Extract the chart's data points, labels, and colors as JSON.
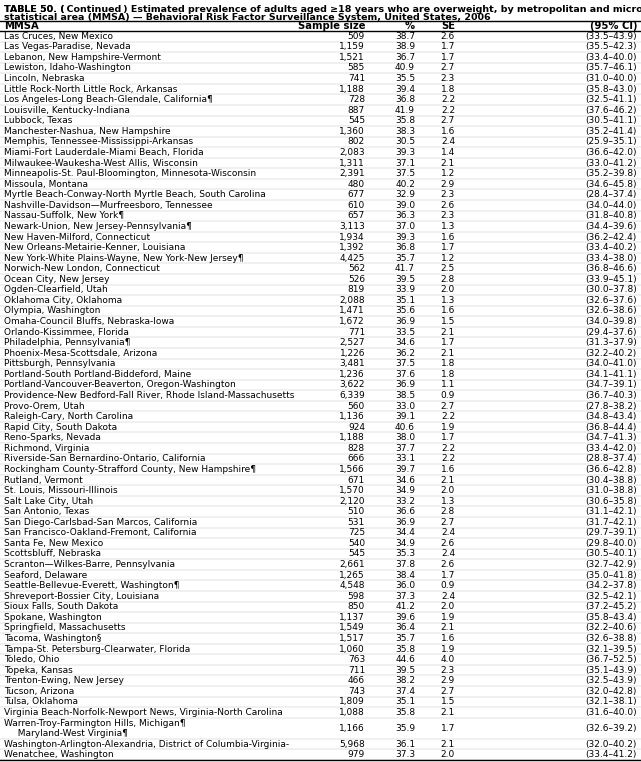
{
  "title_line1": "TABLE 50. (Continued) Estimated prevalence of adults aged ≥18 years who are overweight, by metropolitan and micropolitan",
  "title_line2": "statistical area (MMSA) — Behavioral Risk Factor Surveillance System, United States, 2006",
  "col_headers": [
    "MMSA",
    "Sample size",
    "%",
    "SE",
    "(95% CI)"
  ],
  "rows": [
    [
      "Las Cruces, New Mexico",
      "509",
      "38.7",
      "2.6",
      "(33.5–43.9)"
    ],
    [
      "Las Vegas-Paradise, Nevada",
      "1,159",
      "38.9",
      "1.7",
      "(35.5–42.3)"
    ],
    [
      "Lebanon, New Hampshire-Vermont",
      "1,521",
      "36.7",
      "1.7",
      "(33.4–40.0)"
    ],
    [
      "Lewiston, Idaho-Washington",
      "585",
      "40.9",
      "2.7",
      "(35.7–46.1)"
    ],
    [
      "Lincoln, Nebraska",
      "741",
      "35.5",
      "2.3",
      "(31.0–40.0)"
    ],
    [
      "Little Rock-North Little Rock, Arkansas",
      "1,188",
      "39.4",
      "1.8",
      "(35.8–43.0)"
    ],
    [
      "Los Angeles-Long Beach-Glendale, California¶",
      "728",
      "36.8",
      "2.2",
      "(32.5–41.1)"
    ],
    [
      "Louisville, Kentucky-Indiana",
      "887",
      "41.9",
      "2.2",
      "(37.6–46.2)"
    ],
    [
      "Lubbock, Texas",
      "545",
      "35.8",
      "2.7",
      "(30.5–41.1)"
    ],
    [
      "Manchester-Nashua, New Hampshire",
      "1,360",
      "38.3",
      "1.6",
      "(35.2–41.4)"
    ],
    [
      "Memphis, Tennessee-Mississippi-Arkansas",
      "802",
      "30.5",
      "2.4",
      "(25.9–35.1)"
    ],
    [
      "Miami-Fort Lauderdale-Miami Beach, Florida",
      "2,083",
      "39.3",
      "1.4",
      "(36.6–42.0)"
    ],
    [
      "Milwaukee-Waukesha-West Allis, Wisconsin",
      "1,311",
      "37.1",
      "2.1",
      "(33.0–41.2)"
    ],
    [
      "Minneapolis-St. Paul-Bloomington, Minnesota-Wisconsin",
      "2,391",
      "37.5",
      "1.2",
      "(35.2–39.8)"
    ],
    [
      "Missoula, Montana",
      "480",
      "40.2",
      "2.9",
      "(34.6–45.8)"
    ],
    [
      "Myrtle Beach-Conway-North Myrtle Beach, South Carolina",
      "677",
      "32.9",
      "2.3",
      "(28.4–37.4)"
    ],
    [
      "Nashville-Davidson—Murfreesboro, Tennessee",
      "610",
      "39.0",
      "2.6",
      "(34.0–44.0)"
    ],
    [
      "Nassau-Suffolk, New York¶",
      "657",
      "36.3",
      "2.3",
      "(31.8–40.8)"
    ],
    [
      "Newark-Union, New Jersey-Pennsylvania¶",
      "3,113",
      "37.0",
      "1.3",
      "(34.4–39.6)"
    ],
    [
      "New Haven-Milford, Connecticut",
      "1,934",
      "39.3",
      "1.6",
      "(36.2–42.4)"
    ],
    [
      "New Orleans-Metairie-Kenner, Louisiana",
      "1,392",
      "36.8",
      "1.7",
      "(33.4–40.2)"
    ],
    [
      "New York-White Plains-Wayne, New York-New Jersey¶",
      "4,425",
      "35.7",
      "1.2",
      "(33.4–38.0)"
    ],
    [
      "Norwich-New London, Connecticut",
      "562",
      "41.7",
      "2.5",
      "(36.8–46.6)"
    ],
    [
      "Ocean City, New Jersey",
      "526",
      "39.5",
      "2.8",
      "(33.9–45.1)"
    ],
    [
      "Ogden-Clearfield, Utah",
      "819",
      "33.9",
      "2.0",
      "(30.0–37.8)"
    ],
    [
      "Oklahoma City, Oklahoma",
      "2,088",
      "35.1",
      "1.3",
      "(32.6–37.6)"
    ],
    [
      "Olympia, Washington",
      "1,471",
      "35.6",
      "1.6",
      "(32.6–38.6)"
    ],
    [
      "Omaha-Council Bluffs, Nebraska-Iowa",
      "1,672",
      "36.9",
      "1.5",
      "(34.0–39.8)"
    ],
    [
      "Orlando-Kissimmee, Florida",
      "771",
      "33.5",
      "2.1",
      "(29.4–37.6)"
    ],
    [
      "Philadelphia, Pennsylvania¶",
      "2,527",
      "34.6",
      "1.7",
      "(31.3–37.9)"
    ],
    [
      "Phoenix-Mesa-Scottsdale, Arizona",
      "1,226",
      "36.2",
      "2.1",
      "(32.2–40.2)"
    ],
    [
      "Pittsburgh, Pennsylvania",
      "3,481",
      "37.5",
      "1.8",
      "(34.0–41.0)"
    ],
    [
      "Portland-South Portland-Biddeford, Maine",
      "1,236",
      "37.6",
      "1.8",
      "(34.1–41.1)"
    ],
    [
      "Portland-Vancouver-Beaverton, Oregon-Washington",
      "3,622",
      "36.9",
      "1.1",
      "(34.7–39.1)"
    ],
    [
      "Providence-New Bedford-Fall River, Rhode Island-Massachusetts",
      "6,339",
      "38.5",
      "0.9",
      "(36.7–40.3)"
    ],
    [
      "Provo-Orem, Utah",
      "560",
      "33.0",
      "2.7",
      "(27.8–38.2)"
    ],
    [
      "Raleigh-Cary, North Carolina",
      "1,136",
      "39.1",
      "2.2",
      "(34.8–43.4)"
    ],
    [
      "Rapid City, South Dakota",
      "924",
      "40.6",
      "1.9",
      "(36.8–44.4)"
    ],
    [
      "Reno-Sparks, Nevada",
      "1,188",
      "38.0",
      "1.7",
      "(34.7–41.3)"
    ],
    [
      "Richmond, Virginia",
      "828",
      "37.7",
      "2.2",
      "(33.4–42.0)"
    ],
    [
      "Riverside-San Bernardino-Ontario, California",
      "666",
      "33.1",
      "2.2",
      "(28.8–37.4)"
    ],
    [
      "Rockingham County-Strafford County, New Hampshire¶",
      "1,566",
      "39.7",
      "1.6",
      "(36.6–42.8)"
    ],
    [
      "Rutland, Vermont",
      "671",
      "34.6",
      "2.1",
      "(30.4–38.8)"
    ],
    [
      "St. Louis, Missouri-Illinois",
      "1,570",
      "34.9",
      "2.0",
      "(31.0–38.8)"
    ],
    [
      "Salt Lake City, Utah",
      "2,120",
      "33.2",
      "1.3",
      "(30.6–35.8)"
    ],
    [
      "San Antonio, Texas",
      "510",
      "36.6",
      "2.8",
      "(31.1–42.1)"
    ],
    [
      "San Diego-Carlsbad-San Marcos, California",
      "531",
      "36.9",
      "2.7",
      "(31.7–42.1)"
    ],
    [
      "San Francisco-Oakland-Fremont, California",
      "725",
      "34.4",
      "2.4",
      "(29.7–39.1)"
    ],
    [
      "Santa Fe, New Mexico",
      "540",
      "34.9",
      "2.6",
      "(29.8–40.0)"
    ],
    [
      "Scottsbluff, Nebraska",
      "545",
      "35.3",
      "2.4",
      "(30.5–40.1)"
    ],
    [
      "Scranton—Wilkes-Barre, Pennsylvania",
      "2,661",
      "37.8",
      "2.6",
      "(32.7–42.9)"
    ],
    [
      "Seaford, Delaware",
      "1,265",
      "38.4",
      "1.7",
      "(35.0–41.8)"
    ],
    [
      "Seattle-Bellevue-Everett, Washington¶",
      "4,548",
      "36.0",
      "0.9",
      "(34.2–37.8)"
    ],
    [
      "Shreveport-Bossier City, Louisiana",
      "598",
      "37.3",
      "2.4",
      "(32.5–42.1)"
    ],
    [
      "Sioux Falls, South Dakota",
      "850",
      "41.2",
      "2.0",
      "(37.2–45.2)"
    ],
    [
      "Spokane, Washington",
      "1,137",
      "39.6",
      "1.9",
      "(35.8–43.4)"
    ],
    [
      "Springfield, Massachusetts",
      "1,549",
      "36.4",
      "2.1",
      "(32.2–40.6)"
    ],
    [
      "Tacoma, Washington§",
      "1,517",
      "35.7",
      "1.6",
      "(32.6–38.8)"
    ],
    [
      "Tampa-St. Petersburg-Clearwater, Florida",
      "1,060",
      "35.8",
      "1.9",
      "(32.1–39.5)"
    ],
    [
      "Toledo, Ohio",
      "763",
      "44.6",
      "4.0",
      "(36.7–52.5)"
    ],
    [
      "Topeka, Kansas",
      "711",
      "39.5",
      "2.3",
      "(35.1–43.9)"
    ],
    [
      "Trenton-Ewing, New Jersey",
      "466",
      "38.2",
      "2.9",
      "(32.5–43.9)"
    ],
    [
      "Tucson, Arizona",
      "743",
      "37.4",
      "2.7",
      "(32.0–42.8)"
    ],
    [
      "Tulsa, Oklahoma",
      "1,809",
      "35.1",
      "1.5",
      "(32.1–38.1)"
    ],
    [
      "Virginia Beach-Norfolk-Newport News, Virginia-North Carolina",
      "1,088",
      "35.8",
      "2.1",
      "(31.6–40.0)"
    ],
    [
      "Warren-Troy-Farmington Hills, Michigan¶",
      "1,166",
      "35.9",
      "1.7",
      "(32.6–39.2)"
    ],
    [
      "Washington-Arlington-Alexandria, District of Columbia-Virginia-",
      "5,968",
      "36.1",
      "2.1",
      "(32.0–40.2)"
    ],
    [
      "Wenatchee, Washington",
      "979",
      "37.3",
      "2.0",
      "(33.4–41.2)"
    ]
  ],
  "washington_continuation": "  Maryland-West Virginia¶",
  "washington_row_index": 65,
  "bg_color": "#ffffff",
  "text_color": "#000000",
  "title_fontsize": 6.8,
  "header_fontsize": 7.2,
  "row_fontsize": 6.5
}
